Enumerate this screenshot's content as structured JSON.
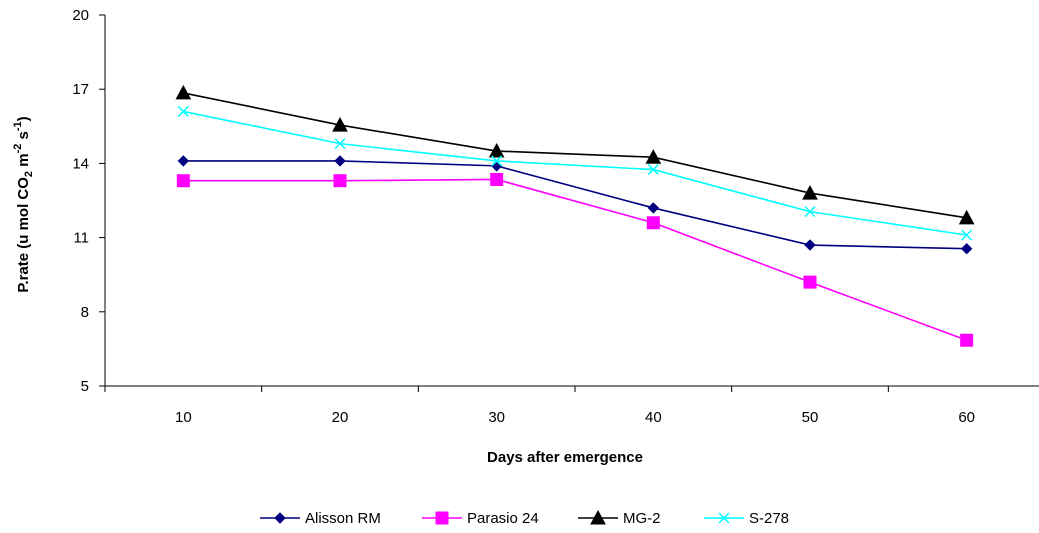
{
  "chart_data": {
    "type": "line",
    "x": [
      10,
      20,
      30,
      40,
      50,
      60
    ],
    "xlabel": "Days after emergence",
    "ylabel": {
      "main": "P.rate (u mol CO",
      "sub": "2",
      "mid": " m",
      "sup1": "-2",
      "mid2": " s",
      "sup2": "-1",
      "end": ")"
    },
    "ylim": [
      5,
      20
    ],
    "yticks": [
      5,
      8,
      11,
      14,
      17,
      20
    ],
    "grid": false,
    "legend_position": "bottom",
    "series": [
      {
        "name": "Alisson RM",
        "color": "#000080",
        "marker": "diamond",
        "values": [
          14.1,
          14.1,
          13.9,
          12.2,
          10.7,
          10.55
        ]
      },
      {
        "name": "Parasio 24",
        "color": "#FF00FF",
        "marker": "square",
        "values": [
          13.3,
          13.3,
          13.35,
          11.6,
          9.2,
          6.85
        ]
      },
      {
        "name": "MG-2",
        "color": "#000000",
        "marker": "triangle",
        "values": [
          16.85,
          15.55,
          14.5,
          14.25,
          12.8,
          11.8
        ]
      },
      {
        "name": "S-278",
        "color": "#00FFFF",
        "marker": "x",
        "values": [
          16.1,
          14.8,
          14.1,
          13.75,
          12.05,
          11.1
        ]
      }
    ]
  }
}
